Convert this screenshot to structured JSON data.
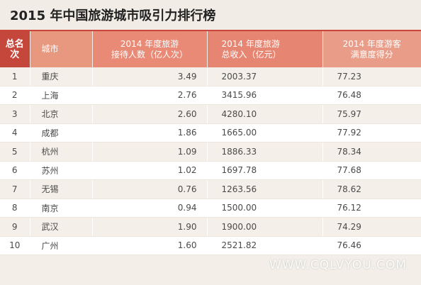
{
  "title": "2015 年中国旅游城市吸引力排行榜",
  "chart_data": {
    "type": "table",
    "title": "2015 年中国旅游城市吸引力排行榜",
    "columns": [
      [
        "总名",
        "次"
      ],
      [
        "城市"
      ],
      [
        "2014 年度旅游",
        "接待人数（亿人次）"
      ],
      [
        "2014 年度旅游",
        "总收入（亿元）"
      ],
      [
        "2014 年度游客",
        "满意度得分"
      ]
    ],
    "rows": [
      {
        "rank": "1",
        "city": "重庆",
        "visitors": "3.49",
        "income": "2003.37",
        "satisfaction": "77.23"
      },
      {
        "rank": "2",
        "city": "上海",
        "visitors": "2.76",
        "income": "3415.96",
        "satisfaction": "76.48"
      },
      {
        "rank": "3",
        "city": "北京",
        "visitors": "2.60",
        "income": "4280.10",
        "satisfaction": "75.97"
      },
      {
        "rank": "4",
        "city": "成都",
        "visitors": "1.86",
        "income": "1665.00",
        "satisfaction": "77.92"
      },
      {
        "rank": "5",
        "city": "杭州",
        "visitors": "1.09",
        "income": "1886.33",
        "satisfaction": "78.34"
      },
      {
        "rank": "6",
        "city": "苏州",
        "visitors": "1.02",
        "income": "1697.78",
        "satisfaction": "77.68"
      },
      {
        "rank": "7",
        "city": "无锡",
        "visitors": "0.76",
        "income": "1263.56",
        "satisfaction": "78.62"
      },
      {
        "rank": "8",
        "city": "南京",
        "visitors": "0.94",
        "income": "1500.00",
        "satisfaction": "76.12"
      },
      {
        "rank": "9",
        "city": "武汉",
        "visitors": "1.90",
        "income": "1900.00",
        "satisfaction": "74.29"
      },
      {
        "rank": "10",
        "city": "广州",
        "visitors": "1.60",
        "income": "2521.82",
        "satisfaction": "76.46"
      }
    ]
  },
  "watermark": "WWW.CQLVYOU.COM",
  "colors": {
    "accent": "#c9473a",
    "header_rank": "#c5473b",
    "header_light": "#e8987f",
    "header_mid": "#e88a76"
  }
}
